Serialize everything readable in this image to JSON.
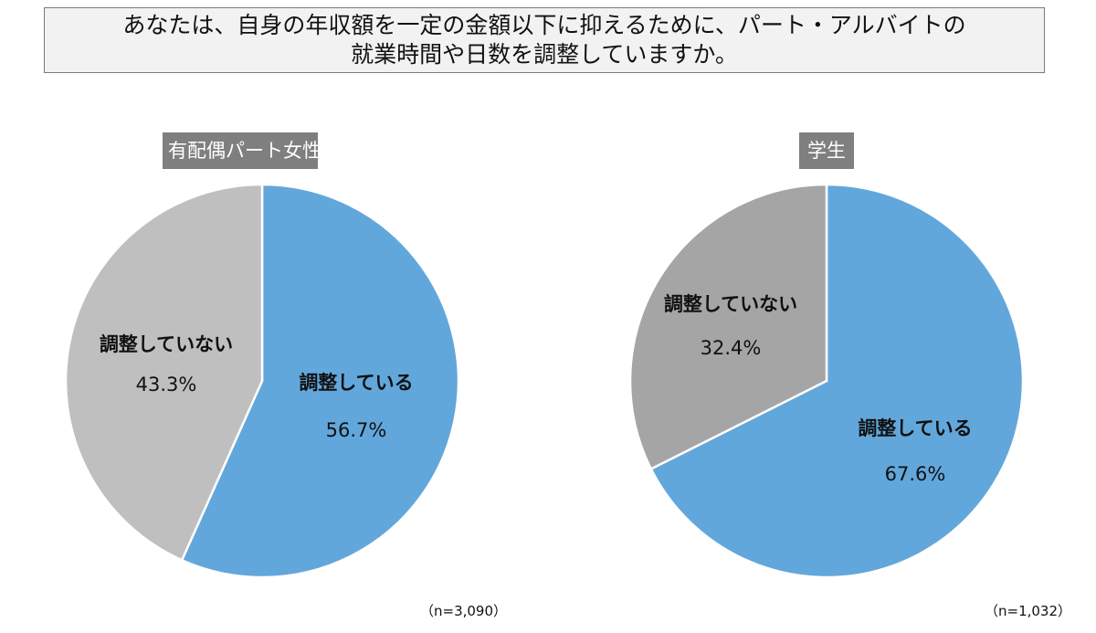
{
  "title": {
    "line1": "あなたは、自身の年収額を一定の金額以下に抑えるために、パート・アルバイトの",
    "line2": "就業時間や日数を調整していますか。"
  },
  "colors": {
    "adjusting": "#62a7dc",
    "not_adjusting_left": "#bfbfbf",
    "not_adjusting_right": "#a5a5a5",
    "label_bg": "#7f7f7f"
  },
  "chart_data": [
    {
      "type": "pie",
      "title": "有配偶パート女性",
      "sample_size": "（n=3,090）",
      "slices": [
        {
          "label": "調整している",
          "value": 56.7,
          "value_text": "56.7%"
        },
        {
          "label": "調整していない",
          "value": 43.3,
          "value_text": "43.3%"
        }
      ],
      "start_angle": "12 o'clock",
      "direction": "clockwise"
    },
    {
      "type": "pie",
      "title": "学生",
      "sample_size": "（n=1,032）",
      "slices": [
        {
          "label": "調整している",
          "value": 67.6,
          "value_text": "67.6%"
        },
        {
          "label": "調整していない",
          "value": 32.4,
          "value_text": "32.4%"
        }
      ],
      "start_angle": "12 o'clock",
      "direction": "clockwise"
    }
  ]
}
